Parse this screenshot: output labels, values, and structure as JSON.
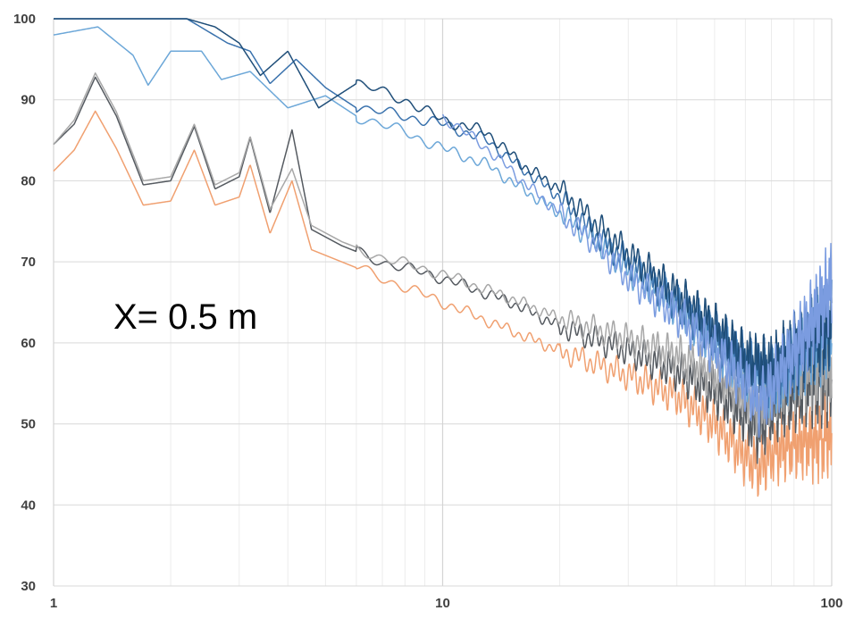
{
  "chart_data": {
    "type": "line",
    "title": "",
    "xlabel": "",
    "ylabel": "",
    "x_scale": "log",
    "xlim": [
      1,
      100
    ],
    "ylim": [
      30,
      100
    ],
    "x_ticks": [
      1,
      10,
      100
    ],
    "x_tick_labels": [
      "1",
      "10",
      "100"
    ],
    "y_ticks": [
      30,
      40,
      50,
      60,
      70,
      80,
      90,
      100
    ],
    "y_tick_labels": [
      "30",
      "40",
      "50",
      "60",
      "70",
      "80",
      "90",
      "100"
    ],
    "grid": true,
    "legend": "none",
    "annotation": "X= 0.5 m",
    "series": [
      {
        "color": "#f0a070",
        "points": [
          [
            1,
            81.2
          ],
          [
            1.13,
            83.8
          ],
          [
            1.28,
            88.6
          ],
          [
            1.45,
            84
          ],
          [
            1.7,
            77
          ],
          [
            2.0,
            77.5
          ],
          [
            2.3,
            83.8
          ],
          [
            2.6,
            77
          ],
          [
            3.0,
            78
          ],
          [
            3.2,
            82
          ],
          [
            3.6,
            73.5
          ],
          [
            4.1,
            80
          ],
          [
            4.6,
            71.5
          ],
          [
            5.5,
            70
          ],
          [
            7,
            68
          ],
          [
            10,
            65
          ],
          [
            15,
            61.5
          ],
          [
            20,
            59
          ],
          [
            30,
            56
          ],
          [
            40,
            53.5
          ],
          [
            50,
            50
          ],
          [
            60,
            46
          ],
          [
            65,
            44.5
          ],
          [
            70,
            46.5
          ],
          [
            80,
            47.5
          ],
          [
            90,
            48
          ],
          [
            100,
            48.5
          ]
        ]
      },
      {
        "color": "#555a60",
        "points": [
          [
            1,
            84.5
          ],
          [
            1.13,
            87
          ],
          [
            1.28,
            92.8
          ],
          [
            1.45,
            88
          ],
          [
            1.7,
            79.5
          ],
          [
            2.0,
            80
          ],
          [
            2.3,
            86.7
          ],
          [
            2.6,
            79
          ],
          [
            3.0,
            80.5
          ],
          [
            3.2,
            85.3
          ],
          [
            3.6,
            76
          ],
          [
            4.1,
            86.3
          ],
          [
            4.6,
            74
          ],
          [
            5.5,
            72
          ],
          [
            7,
            70
          ],
          [
            10,
            68
          ],
          [
            15,
            65
          ],
          [
            20,
            62
          ],
          [
            30,
            59
          ],
          [
            40,
            56.5
          ],
          [
            50,
            54
          ],
          [
            60,
            51
          ],
          [
            65,
            49
          ],
          [
            70,
            51.5
          ],
          [
            80,
            53.5
          ],
          [
            90,
            55
          ],
          [
            100,
            55
          ]
        ]
      },
      {
        "color": "#a8a8a8",
        "points": [
          [
            1,
            84.5
          ],
          [
            1.13,
            87.5
          ],
          [
            1.28,
            93.3
          ],
          [
            1.45,
            88.5
          ],
          [
            1.7,
            80
          ],
          [
            2.0,
            80.5
          ],
          [
            2.3,
            87
          ],
          [
            2.6,
            79.5
          ],
          [
            3.0,
            81
          ],
          [
            3.2,
            85.5
          ],
          [
            3.6,
            76.5
          ],
          [
            4.1,
            81.5
          ],
          [
            4.6,
            74.5
          ],
          [
            5.5,
            72.5
          ],
          [
            7,
            70.5
          ],
          [
            10,
            68.5
          ],
          [
            15,
            65.5
          ],
          [
            20,
            63
          ],
          [
            30,
            60.5
          ],
          [
            40,
            58.5
          ],
          [
            50,
            56
          ],
          [
            60,
            54
          ],
          [
            65,
            52
          ],
          [
            70,
            54
          ],
          [
            80,
            56
          ],
          [
            90,
            57
          ],
          [
            100,
            57
          ]
        ]
      },
      {
        "color": "#6ca7d8",
        "points": [
          [
            1,
            98
          ],
          [
            1.3,
            99
          ],
          [
            1.6,
            95.5
          ],
          [
            1.75,
            91.8
          ],
          [
            2.0,
            96
          ],
          [
            2.4,
            96
          ],
          [
            2.7,
            92.5
          ],
          [
            3.2,
            93.5
          ],
          [
            4,
            89
          ],
          [
            5,
            90.5
          ],
          [
            6,
            88
          ],
          [
            8,
            86
          ],
          [
            10,
            84
          ],
          [
            13,
            82
          ],
          [
            16,
            79
          ],
          [
            20,
            76
          ],
          [
            25,
            72.5
          ],
          [
            30,
            69
          ],
          [
            40,
            64.5
          ],
          [
            50,
            60
          ],
          [
            60,
            56.5
          ],
          [
            70,
            55
          ],
          [
            80,
            57.5
          ],
          [
            90,
            60
          ],
          [
            100,
            61
          ]
        ]
      },
      {
        "color": "#3a72ad",
        "points": [
          [
            1,
            100
          ],
          [
            1.5,
            100
          ],
          [
            2.2,
            100
          ],
          [
            2.8,
            97
          ],
          [
            3.2,
            96
          ],
          [
            3.6,
            92
          ],
          [
            4.2,
            95
          ],
          [
            5,
            91.5
          ],
          [
            6,
            89
          ],
          [
            8,
            88
          ],
          [
            10,
            87
          ],
          [
            13,
            85
          ],
          [
            16,
            81.5
          ],
          [
            20,
            78
          ],
          [
            25,
            73
          ],
          [
            30,
            70
          ],
          [
            40,
            65
          ],
          [
            50,
            61
          ],
          [
            60,
            57.5
          ],
          [
            70,
            56
          ],
          [
            80,
            58
          ],
          [
            90,
            61
          ],
          [
            100,
            62
          ]
        ]
      },
      {
        "color": "#1f4e79",
        "points": [
          [
            1,
            100
          ],
          [
            1.5,
            100
          ],
          [
            2.2,
            100
          ],
          [
            2.6,
            99
          ],
          [
            3.0,
            97
          ],
          [
            3.4,
            93
          ],
          [
            4,
            96
          ],
          [
            4.8,
            89
          ],
          [
            6,
            92
          ],
          [
            8,
            90
          ],
          [
            10,
            87.5
          ],
          [
            13,
            86
          ],
          [
            16,
            82
          ],
          [
            20,
            79
          ],
          [
            25,
            74.5
          ],
          [
            30,
            71
          ],
          [
            40,
            66
          ],
          [
            50,
            62
          ],
          [
            60,
            58
          ],
          [
            70,
            57
          ],
          [
            80,
            59
          ],
          [
            90,
            61
          ],
          [
            100,
            62
          ]
        ]
      },
      {
        "color": "#7b9ce0",
        "points": [
          [
            10,
            88
          ],
          [
            13,
            84
          ],
          [
            16,
            80
          ],
          [
            20,
            76
          ],
          [
            25,
            72
          ],
          [
            30,
            68
          ],
          [
            40,
            63.5
          ],
          [
            50,
            59
          ],
          [
            60,
            55
          ],
          [
            65,
            52.5
          ],
          [
            70,
            54.5
          ],
          [
            80,
            59
          ],
          [
            90,
            63
          ],
          [
            100,
            67
          ]
        ]
      }
    ]
  }
}
